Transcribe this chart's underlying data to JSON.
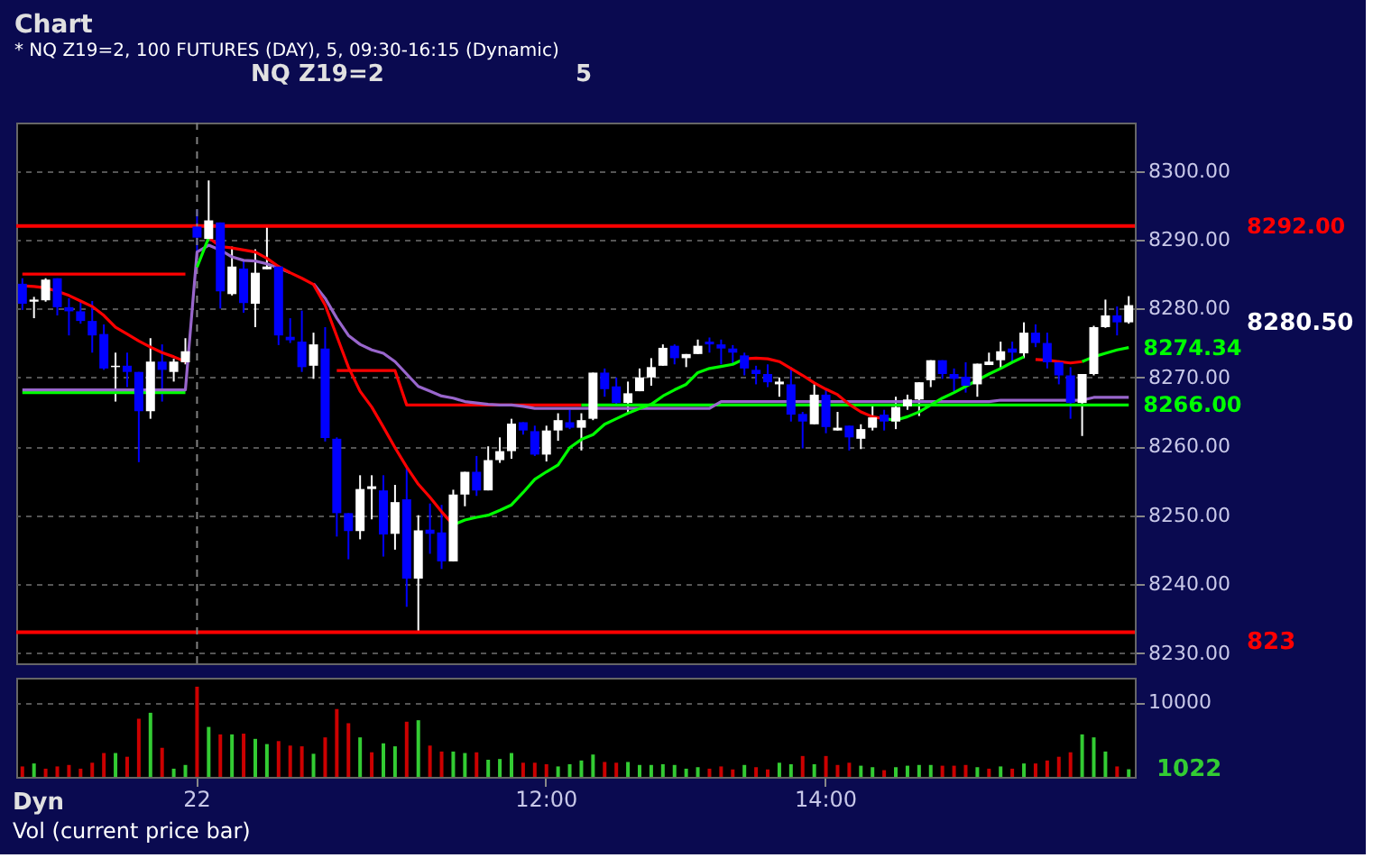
{
  "chart_data": [
    {
      "type": "candlestick",
      "title": "Chart",
      "subtitle": "* NQ Z19=2, 100 FUTURES (DAY), 5, 09:30-16:15 (Dynamic)",
      "annotations": [
        "NQ Z19=2",
        "5",
        "8280.50",
        "823"
      ],
      "categories": [
        null,
        null,
        null,
        null,
        null,
        null,
        null,
        null,
        null,
        null,
        null,
        null,
        null,
        null,
        null,
        null,
        null,
        null,
        null,
        null,
        null,
        null,
        null,
        null,
        null,
        null,
        null,
        null,
        null,
        null,
        null,
        null,
        null,
        null,
        null,
        null,
        null,
        null,
        null,
        null,
        null,
        null,
        null,
        null,
        null,
        null,
        null,
        null,
        null,
        null,
        null,
        null,
        null,
        null,
        null,
        null,
        null,
        null,
        null,
        null,
        null,
        null,
        null,
        null,
        null,
        null,
        null,
        null,
        null,
        null,
        null,
        null,
        null,
        null,
        null,
        null,
        null,
        null,
        null,
        null,
        null,
        null,
        null,
        null,
        null,
        null,
        null,
        null,
        null,
        null,
        null,
        null,
        null,
        null,
        null,
        null
      ],
      "ohlc": [
        [
          8283.6,
          8284.4,
          8279.8,
          8280.7
        ],
        [
          8281.0,
          8281.7,
          8278.6,
          8281.3
        ],
        [
          8281.2,
          8284.4,
          8281.0,
          8284.2
        ],
        [
          8284.4,
          8284.4,
          8279.0,
          8280.2
        ],
        [
          8280.2,
          8281.5,
          8276.1,
          8279.6
        ],
        [
          8279.6,
          8281.1,
          8277.8,
          8278.2
        ],
        [
          8278.2,
          8281.1,
          8273.6,
          8276.1
        ],
        [
          8276.3,
          8277.7,
          8271.1,
          8271.3
        ],
        [
          8271.5,
          8273.6,
          8266.5,
          8271.7
        ],
        [
          8271.7,
          8273.6,
          8268.6,
          8270.8
        ],
        [
          8270.8,
          8270.8,
          8257.7,
          8265.1
        ],
        [
          8265.1,
          8275.7,
          8264.0,
          8272.3
        ],
        [
          8272.3,
          8274.8,
          8266.5,
          8271.1
        ],
        [
          8270.8,
          8272.7,
          8269.4,
          8272.3
        ],
        [
          8272.2,
          8275.7,
          8271.9,
          8273.8
        ],
        [
          8291.9,
          8294.4,
          8288.2,
          8290.3
        ],
        [
          8290.1,
          8298.6,
          8289.8,
          8292.8
        ],
        [
          8292.5,
          8292.5,
          8280.0,
          8282.5
        ],
        [
          8282.1,
          8289.0,
          8281.9,
          8286.1
        ],
        [
          8285.8,
          8286.9,
          8279.4,
          8280.8
        ],
        [
          8280.7,
          8288.6,
          8277.3,
          8285.2
        ],
        [
          8285.7,
          8292.2,
          8285.7,
          8286.1
        ],
        [
          8286.1,
          8286.2,
          8274.7,
          8276.1
        ],
        [
          8275.9,
          8278.6,
          8275.0,
          8275.4
        ],
        [
          8275.2,
          8279.7,
          8270.8,
          8271.5
        ],
        [
          8271.7,
          8276.5,
          8269.8,
          8274.8
        ],
        [
          8274.2,
          8277.3,
          8260.7,
          8261.2
        ],
        [
          8261.1,
          8261.3,
          8246.9,
          8250.3
        ],
        [
          8250.3,
          8250.3,
          8243.6,
          8247.7
        ],
        [
          8247.7,
          8255.8,
          8246.5,
          8253.8
        ],
        [
          8253.8,
          8255.8,
          8249.4,
          8254.2
        ],
        [
          8253.6,
          8255.8,
          8244.0,
          8247.2
        ],
        [
          8247.3,
          8254.4,
          8245.0,
          8251.9
        ],
        [
          8252.3,
          8256.9,
          8236.7,
          8240.8
        ],
        [
          8240.8,
          8250.0,
          8232.9,
          8247.8
        ],
        [
          8247.9,
          8251.7,
          8244.4,
          8247.3
        ],
        [
          8247.5,
          8251.5,
          8242.2,
          8243.3
        ],
        [
          8243.3,
          8253.7,
          8243.3,
          8253.0
        ],
        [
          8253.0,
          8256.3,
          8251.3,
          8256.3
        ],
        [
          8256.3,
          8258.6,
          8252.8,
          8253.6
        ],
        [
          8253.6,
          8260.0,
          8253.6,
          8258.0
        ],
        [
          8258.0,
          8261.3,
          8257.6,
          8259.3
        ],
        [
          8259.3,
          8264.0,
          8258.2,
          8263.3
        ],
        [
          8263.5,
          8263.5,
          8261.7,
          8262.3
        ],
        [
          8262.2,
          8263.0,
          8258.6,
          8258.8
        ],
        [
          8258.8,
          8263.0,
          8257.8,
          8262.3
        ],
        [
          8262.3,
          8264.8,
          8260.8,
          8263.8
        ],
        [
          8263.5,
          8265.3,
          8262.5,
          8262.7
        ],
        [
          8262.7,
          8264.8,
          8259.4,
          8263.8
        ],
        [
          8264.0,
          8270.7,
          8263.8,
          8270.7
        ],
        [
          8270.7,
          8271.3,
          8267.2,
          8268.3
        ],
        [
          8268.7,
          8270.0,
          8266.1,
          8266.3
        ],
        [
          8266.3,
          8269.4,
          8264.8,
          8267.7
        ],
        [
          8268.0,
          8271.3,
          8268.0,
          8270.0
        ],
        [
          8270.0,
          8272.8,
          8268.8,
          8271.5
        ],
        [
          8271.7,
          8274.8,
          8271.7,
          8274.3
        ],
        [
          8274.6,
          8274.8,
          8271.9,
          8272.8
        ],
        [
          8272.8,
          8273.4,
          8271.5,
          8273.4
        ],
        [
          8273.4,
          8275.5,
          8273.4,
          8274.6
        ],
        [
          8275.2,
          8275.8,
          8273.6,
          8274.8
        ],
        [
          8274.8,
          8275.5,
          8271.9,
          8274.2
        ],
        [
          8274.2,
          8274.7,
          8271.9,
          8273.6
        ],
        [
          8273.2,
          8273.6,
          8270.3,
          8271.3
        ],
        [
          8271.1,
          8271.7,
          8269.0,
          8270.5
        ],
        [
          8270.5,
          8271.9,
          8268.6,
          8269.3
        ],
        [
          8269.0,
          8270.0,
          8267.2,
          8269.4
        ],
        [
          8269.0,
          8271.5,
          8263.6,
          8264.6
        ],
        [
          8264.7,
          8265.0,
          8259.7,
          8263.6
        ],
        [
          8263.2,
          8269.0,
          8263.2,
          8267.5
        ],
        [
          8267.5,
          8268.2,
          8261.9,
          8262.8
        ],
        [
          8262.3,
          8265.0,
          8262.3,
          8262.7
        ],
        [
          8263.0,
          8263.0,
          8259.4,
          8261.3
        ],
        [
          8261.1,
          8263.2,
          8259.6,
          8262.5
        ],
        [
          8262.7,
          8266.1,
          8262.3,
          8264.2
        ],
        [
          8264.6,
          8265.3,
          8262.3,
          8263.6
        ],
        [
          8263.6,
          8267.2,
          8262.5,
          8265.7
        ],
        [
          8265.8,
          8267.5,
          8265.3,
          8266.8
        ],
        [
          8266.8,
          8269.3,
          8264.4,
          8269.3
        ],
        [
          8269.6,
          8272.5,
          8268.6,
          8272.5
        ],
        [
          8272.5,
          8272.5,
          8269.8,
          8270.5
        ],
        [
          8270.5,
          8271.3,
          8268.0,
          8269.8
        ],
        [
          8270.1,
          8272.2,
          8267.8,
          8268.8
        ],
        [
          8269.0,
          8272.0,
          8267.2,
          8272.0
        ],
        [
          8271.8,
          8273.6,
          8271.8,
          8272.3
        ],
        [
          8272.5,
          8275.2,
          8271.3,
          8273.8
        ],
        [
          8274.2,
          8275.2,
          8272.2,
          8273.6
        ],
        [
          8273.5,
          8278.0,
          8272.8,
          8276.5
        ],
        [
          8276.5,
          8277.7,
          8274.4,
          8275.0
        ],
        [
          8275.0,
          8276.5,
          8271.3,
          8272.2
        ],
        [
          8272.2,
          8272.5,
          8269.0,
          8270.3
        ],
        [
          8270.3,
          8271.5,
          8264.0,
          8266.3
        ],
        [
          8266.3,
          8270.5,
          8261.5,
          8270.5
        ],
        [
          8270.5,
          8277.5,
          8270.3,
          8277.3
        ],
        [
          8277.3,
          8281.3,
          8277.2,
          8279.0
        ],
        [
          8279.0,
          8280.3,
          8276.1,
          8278.0
        ],
        [
          8278.0,
          8281.8,
          8277.8,
          8280.5
        ]
      ],
      "colors": [
        "#0000ff",
        "#ffffff",
        "#ffffff",
        "#0000ff",
        "#0000ff",
        "#0000ff",
        "#0000ff",
        "#0000ff",
        "#ffffff",
        "#0000ff",
        "#0000ff",
        "#ffffff",
        "#0000ff",
        "#ffffff",
        "#ffffff",
        "#0000ff",
        "#ffffff",
        "#0000ff",
        "#ffffff",
        "#0000ff",
        "#ffffff",
        "#ffffff",
        "#0000ff",
        "#0000ff",
        "#0000ff",
        "#ffffff",
        "#0000ff",
        "#0000ff",
        "#0000ff",
        "#ffffff",
        "#ffffff",
        "#0000ff",
        "#ffffff",
        "#0000ff",
        "#ffffff",
        "#0000ff",
        "#0000ff",
        "#ffffff",
        "#ffffff",
        "#0000ff",
        "#ffffff",
        "#ffffff",
        "#ffffff",
        "#0000ff",
        "#0000ff",
        "#ffffff",
        "#ffffff",
        "#0000ff",
        "#ffffff",
        "#ffffff",
        "#0000ff",
        "#0000ff",
        "#ffffff",
        "#ffffff",
        "#ffffff",
        "#ffffff",
        "#0000ff",
        "#ffffff",
        "#ffffff",
        "#0000ff",
        "#0000ff",
        "#0000ff",
        "#0000ff",
        "#0000ff",
        "#0000ff",
        "#ffffff",
        "#0000ff",
        "#0000ff",
        "#ffffff",
        "#0000ff",
        "#ffffff",
        "#0000ff",
        "#ffffff",
        "#ffffff",
        "#0000ff",
        "#ffffff",
        "#ffffff",
        "#ffffff",
        "#ffffff",
        "#0000ff",
        "#0000ff",
        "#0000ff",
        "#ffffff",
        "#ffffff",
        "#ffffff",
        "#0000ff",
        "#ffffff",
        "#0000ff",
        "#0000ff",
        "#0000ff",
        "#0000ff",
        "#ffffff",
        "#ffffff",
        "#ffffff",
        "#0000ff",
        "#ffffff"
      ],
      "series": [
        {
          "type": "line",
          "color": "#ff0000",
          "values": [
            8285.0,
            8285.0,
            8285.0,
            8285.0,
            8285.0,
            8285.0,
            8285.0,
            8285.0,
            8285.0,
            8285.0,
            8285.0,
            8285.0,
            8285.0,
            8285.0,
            8285.0,
            null,
            null,
            null,
            null,
            null,
            null,
            null,
            null,
            null,
            null,
            null,
            null,
            null,
            null,
            null,
            null,
            null,
            null,
            null,
            null,
            null,
            null,
            null,
            null,
            null,
            null,
            null,
            null,
            null,
            null,
            null,
            null,
            null,
            null,
            null,
            null,
            null,
            null,
            null,
            null,
            null,
            null,
            null,
            null,
            null,
            null,
            null,
            null,
            null,
            null,
            null,
            null,
            null,
            null,
            null,
            null,
            null,
            null,
            null,
            null,
            null,
            null,
            null,
            null,
            null,
            null,
            null,
            null,
            null,
            null,
            null,
            null,
            null,
            null,
            null,
            null,
            null,
            null,
            null,
            null,
            null
          ]
        },
        {
          "type": "line",
          "color": "#00ff00",
          "values": [
            8267.8,
            8267.8,
            8267.8,
            8267.8,
            8267.8,
            8267.8,
            8267.8,
            8267.8,
            8267.8,
            8267.8,
            8267.8,
            8267.8,
            8267.8,
            8267.8,
            8267.8,
            null,
            null,
            null,
            null,
            null,
            null,
            null,
            null,
            null,
            null,
            null,
            null,
            null,
            null,
            null,
            null,
            null,
            null,
            null,
            null,
            null,
            null,
            null,
            null,
            null,
            null,
            null,
            null,
            null,
            null,
            null,
            null,
            null,
            null,
            null,
            null,
            null,
            null,
            null,
            null,
            null,
            null,
            null,
            null,
            null,
            null,
            null,
            null,
            null,
            null,
            null,
            null,
            null,
            null,
            null,
            null,
            null,
            null,
            null,
            null,
            null,
            null,
            null,
            null,
            null,
            null,
            null,
            null,
            null,
            null,
            null,
            null,
            null,
            null,
            null,
            null,
            null,
            null,
            null,
            null,
            null
          ]
        },
        {
          "type": "line",
          "color": "#ff0000",
          "values": [
            null,
            null,
            null,
            null,
            null,
            null,
            null,
            null,
            null,
            null,
            null,
            null,
            null,
            null,
            null,
            null,
            null,
            null,
            null,
            null,
            null,
            null,
            null,
            null,
            null,
            null,
            null,
            8271.0,
            8271.0,
            8271.0,
            8271.0,
            8271.0,
            8271.0,
            8266.0,
            8266.0,
            8266.0,
            8266.0,
            8266.0,
            8266.0,
            8266.0,
            8266.0,
            8266.0,
            8266.0,
            8266.0,
            8266.0,
            8266.0,
            8266.0,
            8266.0,
            8266.0,
            null,
            null,
            null,
            null,
            null,
            null,
            null,
            null,
            null,
            null,
            null,
            null,
            null,
            null,
            null,
            null,
            null,
            null,
            null,
            null,
            null,
            null,
            null,
            null,
            null,
            null,
            null,
            null,
            null,
            null,
            null,
            null,
            null,
            null,
            null,
            null,
            null,
            null,
            null,
            null,
            null,
            null,
            null,
            null,
            null,
            null,
            null
          ]
        },
        {
          "type": "line",
          "color": "#00ff00",
          "value_labels": [
            null,
            null,
            null,
            null,
            null,
            null,
            null,
            null,
            null,
            null,
            null,
            null,
            null,
            null,
            null,
            null,
            null,
            null,
            null,
            null,
            null,
            null,
            null,
            null,
            null,
            null,
            null,
            null,
            null,
            null,
            null,
            null,
            null,
            null,
            null,
            null,
            null,
            null,
            null,
            null,
            null,
            null,
            null,
            null,
            null,
            null,
            null,
            null,
            null,
            null,
            null,
            null,
            null,
            null,
            null,
            null,
            null,
            null,
            null,
            null,
            null,
            null,
            null,
            null,
            null,
            null,
            null,
            null,
            null,
            null,
            null,
            null,
            null,
            null,
            null,
            null,
            null,
            null,
            null,
            null,
            null,
            null,
            null,
            null,
            null,
            null,
            null,
            null,
            null,
            null,
            null,
            null,
            null,
            null,
            null,
            "8266.00"
          ],
          "values": [
            null,
            null,
            null,
            null,
            null,
            null,
            null,
            null,
            null,
            null,
            null,
            null,
            null,
            null,
            null,
            null,
            null,
            null,
            null,
            null,
            null,
            null,
            null,
            null,
            null,
            null,
            null,
            null,
            null,
            null,
            null,
            null,
            null,
            null,
            null,
            null,
            null,
            null,
            null,
            null,
            null,
            null,
            null,
            null,
            null,
            null,
            null,
            null,
            8266.0,
            8266.0,
            8266.0,
            8266.0,
            8266.0,
            8266.0,
            8266.0,
            8266.0,
            8266.0,
            8266.0,
            8266.0,
            8266.0,
            8266.0,
            8266.0,
            8266.0,
            8266.0,
            8266.0,
            8266.0,
            8266.0,
            8266.0,
            8266.0,
            8266.0,
            8266.0,
            8266.0,
            8266.0,
            8266.0,
            8266.0,
            8266.0,
            8266.0,
            8266.0,
            8266.0,
            8266.0,
            8266.0,
            8266.0,
            8266.0,
            8266.0,
            8266.0,
            8266.0,
            8266.0,
            8266.0,
            8266.0,
            8266.0,
            8266.0,
            8266.0,
            8266.0,
            8266.0,
            8266.0,
            8266.0
          ]
        },
        {
          "type": "line",
          "color": "#9966cc",
          "values": [
            8268.2,
            8268.2,
            8268.2,
            8268.2,
            8268.2,
            8268.2,
            8268.2,
            8268.2,
            8268.2,
            8268.2,
            8268.2,
            8268.2,
            8268.2,
            8268.2,
            8268.2,
            8288.2,
            8289.2,
            8288.5,
            8287.5,
            8287.0,
            8286.9,
            8286.5,
            8285.9,
            8285.2,
            null,
            8283.6,
            8281.5,
            8278.6,
            8276.1,
            8274.8,
            8274.0,
            8273.5,
            8272.3,
            8270.5,
            8268.7,
            8268.0,
            8267.3,
            8267.0,
            8266.5,
            8266.3,
            8266.1,
            8266.0,
            8266.0,
            8265.8,
            8265.5,
            8265.5,
            8265.5,
            8265.5,
            8265.5,
            8265.5,
            8265.5,
            8265.5,
            8265.5,
            8265.5,
            8265.5,
            8265.5,
            8265.5,
            8265.5,
            8265.5,
            8265.5,
            8266.5,
            8266.5,
            8266.5,
            8266.5,
            8266.5,
            8266.5,
            8266.5,
            8266.5,
            8266.5,
            8266.5,
            8266.5,
            8266.5,
            8266.5,
            8266.5,
            8266.5,
            8266.5,
            8266.5,
            8266.5,
            8266.5,
            8266.5,
            8266.5,
            8266.5,
            8266.5,
            8266.5,
            8266.7,
            8266.7,
            8266.7,
            8266.7,
            8266.7,
            8266.7,
            8266.7,
            8266.7,
            8267.1,
            8267.1,
            8267.1,
            8267.1
          ]
        },
        {
          "type": "line",
          "color": "#ff0000",
          "values": [
            8283.3,
            8283.2,
            8283.0,
            8282.5,
            8281.9,
            8281.1,
            8280.3,
            8279.0,
            8277.3,
            8276.3,
            8275.3,
            8274.4,
            8273.6,
            8273.0,
            8272.3,
            null,
            8290.3,
            8289.0,
            8288.8,
            8288.5,
            8288.2,
            8287.3,
            8286.1,
            8285.2,
            8284.4,
            8283.5,
            8280.5,
            8276.0,
            8271.5,
            8268.0,
            8265.7,
            8262.8,
            8259.8,
            8257.0,
            8254.5,
            8252.6,
            8250.5,
            8248.6,
            null,
            null,
            null,
            null,
            null,
            null,
            null,
            null,
            null,
            null,
            null,
            null,
            null,
            null,
            null,
            null,
            null,
            null,
            null,
            null,
            null,
            null,
            null,
            null,
            8272.7,
            8272.8,
            8272.7,
            8272.3,
            8271.3,
            8270.3,
            8269.2,
            8268.3,
            8267.5,
            8266.1,
            8265.0,
            8264.3,
            8264.0,
            null,
            null,
            null,
            null,
            null,
            null,
            null,
            null,
            null,
            null,
            null,
            null,
            8272.6,
            8272.5,
            8272.3,
            8272.1,
            8272.3,
            null,
            null,
            null,
            null
          ]
        },
        {
          "type": "line",
          "color": "#00ff00",
          "value_labels": [
            null,
            null,
            null,
            null,
            null,
            null,
            null,
            null,
            null,
            null,
            null,
            null,
            null,
            null,
            null,
            null,
            null,
            null,
            null,
            null,
            null,
            null,
            null,
            null,
            null,
            null,
            null,
            null,
            null,
            null,
            null,
            null,
            null,
            null,
            null,
            null,
            null,
            null,
            null,
            null,
            null,
            null,
            null,
            null,
            null,
            null,
            null,
            null,
            null,
            null,
            null,
            null,
            null,
            null,
            null,
            null,
            null,
            null,
            null,
            null,
            null,
            null,
            null,
            null,
            null,
            null,
            null,
            null,
            null,
            null,
            null,
            null,
            null,
            null,
            null,
            null,
            null,
            null,
            null,
            null,
            null,
            null,
            null,
            null,
            null,
            null,
            null,
            null,
            null,
            null,
            null,
            null,
            null,
            null,
            null,
            "8274.34"
          ],
          "values": [
            null,
            null,
            null,
            null,
            null,
            null,
            null,
            null,
            null,
            null,
            null,
            null,
            null,
            null,
            null,
            8286.0,
            8290.3,
            null,
            null,
            null,
            null,
            null,
            null,
            null,
            null,
            null,
            null,
            null,
            null,
            null,
            null,
            null,
            null,
            null,
            null,
            null,
            null,
            8248.6,
            8249.3,
            8249.7,
            8250.0,
            8250.7,
            8251.5,
            8253.3,
            8255.2,
            8256.3,
            8257.3,
            8259.8,
            8261.0,
            8261.7,
            8263.2,
            8264.0,
            8264.8,
            8265.5,
            8266.1,
            8267.3,
            8268.2,
            8269.0,
            8270.7,
            8271.3,
            8271.6,
            8271.9,
            8272.7,
            null,
            null,
            null,
            null,
            null,
            null,
            null,
            null,
            null,
            null,
            null,
            8264.0,
            8263.8,
            8264.3,
            8265.0,
            8266.0,
            8267.0,
            8267.8,
            8268.7,
            8269.6,
            8270.5,
            8271.3,
            8272.2,
            8273.0,
            null,
            null,
            null,
            null,
            8272.3,
            8273.0,
            8273.5,
            8274.0,
            8274.34
          ]
        }
      ],
      "ref_lines": [
        {
          "axis": "y",
          "value": 8292,
          "label": "8292.00",
          "color": "#ff0000"
        },
        {
          "axis": "y",
          "value": 8233,
          "color": "#ff0000"
        },
        {
          "axis": "x",
          "value": "22",
          "color": "#808080",
          "line_style": "dashed"
        }
      ],
      "ylim": [
        8228.5,
        8307
      ],
      "yticks": [
        {
          "value": 8230,
          "label": "8230.00"
        },
        {
          "value": 8240,
          "label": "8240.00"
        },
        {
          "value": 8250,
          "label": "8250.00"
        },
        {
          "value": 8260,
          "label": "8260.00"
        },
        {
          "value": 8270,
          "label": "8270.00"
        },
        {
          "value": 8280,
          "label": "8280.00"
        },
        {
          "value": 8290,
          "label": "8290.00"
        },
        {
          "value": 8300,
          "label": "8300.00"
        }
      ],
      "grid": "y",
      "tick_labels": "y"
    },
    {
      "type": "bar",
      "title": "Vol (current price bar)",
      "annotations": [
        "Dyn",
        "1022"
      ],
      "categories": [
        null,
        null,
        null,
        null,
        null,
        null,
        null,
        null,
        null,
        null,
        null,
        null,
        null,
        null,
        null,
        "22",
        null,
        null,
        null,
        null,
        null,
        null,
        null,
        null,
        null,
        null,
        null,
        null,
        null,
        null,
        null,
        null,
        null,
        null,
        null,
        null,
        null,
        null,
        null,
        null,
        null,
        null,
        null,
        null,
        null,
        "12:00",
        null,
        null,
        null,
        null,
        null,
        null,
        null,
        null,
        null,
        null,
        null,
        null,
        null,
        null,
        null,
        null,
        null,
        null,
        null,
        null,
        null,
        null,
        null,
        "14:00",
        null,
        null,
        null,
        null,
        null,
        null,
        null,
        null,
        null,
        null,
        null,
        null,
        null,
        null,
        null,
        null,
        null,
        null,
        null,
        null,
        null,
        null,
        null,
        null,
        null,
        null
      ],
      "values": [
        1400,
        1800,
        1100,
        1400,
        1600,
        1100,
        1900,
        3200,
        3200,
        2700,
        7800,
        8600,
        3900,
        1100,
        1600,
        12100,
        6700,
        5700,
        5700,
        5800,
        5100,
        4400,
        4800,
        4200,
        4100,
        3100,
        5300,
        9100,
        7200,
        5300,
        3300,
        4500,
        4100,
        7400,
        7600,
        4200,
        3400,
        3400,
        3200,
        3300,
        2300,
        2400,
        3200,
        1900,
        1900,
        1700,
        1400,
        1700,
        2200,
        3000,
        2000,
        1900,
        2000,
        1600,
        1600,
        1700,
        1600,
        1100,
        1300,
        1100,
        1400,
        1000,
        1600,
        1300,
        1000,
        1900,
        1700,
        2800,
        1700,
        2800,
        1600,
        1900,
        1500,
        1300,
        900,
        1300,
        1500,
        1600,
        1600,
        1500,
        1500,
        1600,
        1300,
        1100,
        1400,
        1100,
        1800,
        1800,
        2200,
        2700,
        3300,
        5700,
        5300,
        3400,
        1400,
        1022
      ],
      "colors": [
        "#cc0000",
        "#33cc33",
        "#cc0000",
        "#cc0000",
        "#cc0000",
        "#cc0000",
        "#cc0000",
        "#cc0000",
        "#33cc33",
        "#cc0000",
        "#cc0000",
        "#33cc33",
        "#cc0000",
        "#33cc33",
        "#33cc33",
        "#cc0000",
        "#33cc33",
        "#cc0000",
        "#33cc33",
        "#cc0000",
        "#33cc33",
        "#33cc33",
        "#cc0000",
        "#cc0000",
        "#cc0000",
        "#33cc33",
        "#cc0000",
        "#cc0000",
        "#cc0000",
        "#33cc33",
        "#cc0000",
        "#33cc33",
        "#33cc33",
        "#cc0000",
        "#33cc33",
        "#cc0000",
        "#cc0000",
        "#33cc33",
        "#33cc33",
        "#cc0000",
        "#33cc33",
        "#33cc33",
        "#33cc33",
        "#cc0000",
        "#cc0000",
        "#cc0000",
        "#33cc33",
        "#33cc33",
        "#33cc33",
        "#33cc33",
        "#cc0000",
        "#cc0000",
        "#33cc33",
        "#33cc33",
        "#33cc33",
        "#33cc33",
        "#33cc33",
        "#33cc33",
        "#33cc33",
        "#cc0000",
        "#cc0000",
        "#cc0000",
        "#33cc33",
        "#cc0000",
        "#cc0000",
        "#33cc33",
        "#33cc33",
        "#cc0000",
        "#33cc33",
        "#cc0000",
        "#cc0000",
        "#cc0000",
        "#33cc33",
        "#33cc33",
        "#cc0000",
        "#33cc33",
        "#33cc33",
        "#33cc33",
        "#33cc33",
        "#cc0000",
        "#cc0000",
        "#cc0000",
        "#33cc33",
        "#cc0000",
        "#33cc33",
        "#cc0000",
        "#33cc33",
        "#cc0000",
        "#cc0000",
        "#cc0000",
        "#cc0000",
        "#33cc33",
        "#33cc33",
        "#33cc33",
        "#cc0000",
        "#33cc33"
      ],
      "ylim": [
        0,
        13300
      ],
      "yticks": [
        10000
      ],
      "grid": "y"
    }
  ]
}
